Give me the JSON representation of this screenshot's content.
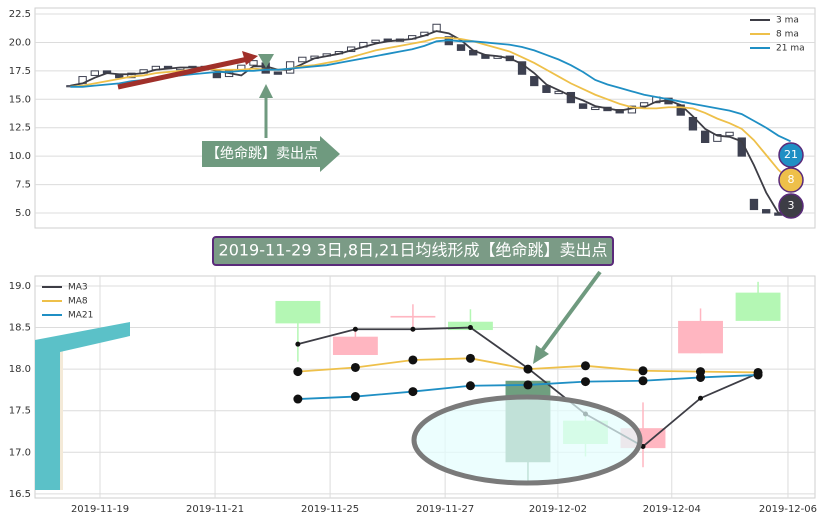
{
  "chart_data": [
    {
      "type": "candlestick",
      "xlim": [
        -2.9,
        61.0
      ],
      "ylim": [
        3.68,
        23.03
      ],
      "yticks": [
        {
          "value": 5,
          "label": "5.0"
        },
        {
          "value": 7.5,
          "label": "7.5"
        },
        {
          "value": 10,
          "label": "10.0"
        },
        {
          "value": 12.5,
          "label": "12.5"
        },
        {
          "value": 15,
          "label": "15.0"
        },
        {
          "value": 17.5,
          "label": "17.5"
        },
        {
          "value": 20,
          "label": "20.0"
        },
        {
          "value": 22.5,
          "label": "22.5"
        }
      ],
      "grid": true,
      "candle_color": "#3d4050",
      "open": [
        16.1,
        16.4,
        17.1,
        17.5,
        17.2,
        16.9,
        17.3,
        17.6,
        17.9,
        17.6,
        17.8,
        17.9,
        17.4,
        17.0,
        17.5,
        18.0,
        18.2,
        17.4,
        17.3,
        18.3,
        18.6,
        18.8,
        19.0,
        19.2,
        19.6,
        20.0,
        20.3,
        20.1,
        20.3,
        20.6,
        21.0,
        20.5,
        19.8,
        19.3,
        18.9,
        18.6,
        18.8,
        18.3,
        17.0,
        16.2,
        15.5,
        15.6,
        14.6,
        14.1,
        14.3,
        14.1,
        13.8,
        14.4,
        14.7,
        15.1,
        14.5,
        13.4,
        12.2,
        11.3,
        11.8,
        11.6,
        6.2,
        5.3,
        5.0,
        4.8
      ],
      "close": [
        16.2,
        17.0,
        17.5,
        17.3,
        16.9,
        17.3,
        17.6,
        17.9,
        17.7,
        17.8,
        17.9,
        17.6,
        16.9,
        17.5,
        18.0,
        18.4,
        17.3,
        17.2,
        18.3,
        18.7,
        18.8,
        19.0,
        19.2,
        19.6,
        20.0,
        20.2,
        20.1,
        20.3,
        20.6,
        20.9,
        21.6,
        19.8,
        19.3,
        18.9,
        18.6,
        18.8,
        18.4,
        17.2,
        16.2,
        15.6,
        15.7,
        14.7,
        14.2,
        14.3,
        14.0,
        13.8,
        14.4,
        14.7,
        15.2,
        14.6,
        13.6,
        12.3,
        11.2,
        11.9,
        12.1,
        10.0,
        5.3,
        5.0,
        4.8,
        5.1
      ],
      "series": [
        {
          "name": "3 ma",
          "color": "#3d3d45",
          "values": [
            16.2,
            16.4,
            16.9,
            17.3,
            17.2,
            17.2,
            17.3,
            17.6,
            17.7,
            17.8,
            17.8,
            17.8,
            17.5,
            17.3,
            17.1,
            17.9,
            17.9,
            17.6,
            17.6,
            18.1,
            18.6,
            18.8,
            19.0,
            19.3,
            19.6,
            19.9,
            20.1,
            20.2,
            20.3,
            20.6,
            21.0,
            20.8,
            20.2,
            19.3,
            18.9,
            18.8,
            18.6,
            18.1,
            17.3,
            16.3,
            15.8,
            15.3,
            14.9,
            14.4,
            14.2,
            14.0,
            14.2,
            14.3,
            14.8,
            14.9,
            14.5,
            13.5,
            12.4,
            11.8,
            11.7,
            11.3,
            9.2,
            6.8,
            5.0,
            5.0
          ]
        },
        {
          "name": "8 ma",
          "color": "#eec04a",
          "values": [
            16.1,
            16.2,
            16.4,
            16.6,
            16.8,
            17.0,
            17.1,
            17.3,
            17.4,
            17.5,
            17.6,
            17.7,
            17.6,
            17.6,
            17.6,
            17.7,
            17.6,
            17.6,
            17.7,
            17.9,
            18.0,
            18.2,
            18.4,
            18.7,
            19.0,
            19.3,
            19.5,
            19.7,
            19.9,
            20.1,
            20.4,
            20.4,
            20.3,
            20.1,
            19.8,
            19.5,
            19.2,
            18.7,
            18.2,
            17.6,
            17.0,
            16.4,
            15.9,
            15.4,
            15.0,
            14.6,
            14.3,
            14.2,
            14.2,
            14.3,
            14.3,
            14.2,
            13.8,
            13.3,
            12.9,
            12.4,
            11.4,
            10.1,
            8.8,
            7.8
          ]
        },
        {
          "name": "21 ma",
          "color": "#1f8fc4",
          "values": [
            16.1,
            16.1,
            16.2,
            16.3,
            16.4,
            16.6,
            16.7,
            16.9,
            17.0,
            17.1,
            17.2,
            17.3,
            17.4,
            17.4,
            17.5,
            17.5,
            17.6,
            17.6,
            17.7,
            17.8,
            17.9,
            18.0,
            18.2,
            18.4,
            18.6,
            18.8,
            19.0,
            19.2,
            19.4,
            19.7,
            20.1,
            20.2,
            20.1,
            20.1,
            20.0,
            19.9,
            19.8,
            19.6,
            19.3,
            18.9,
            18.5,
            18.0,
            17.4,
            16.7,
            16.3,
            16.0,
            15.7,
            15.4,
            15.2,
            15.0,
            14.8,
            14.6,
            14.4,
            14.2,
            14.0,
            13.7,
            13.1,
            12.5,
            11.8,
            11.3
          ]
        }
      ],
      "end_labels": [
        "21",
        "8",
        "3"
      ],
      "annotation": "【绝命跳】卖出点"
    },
    {
      "type": "candlestick",
      "title": "2019-11-29 3日,8日,21日均线形成【绝命跳】卖出点",
      "xlim": [
        -4.57,
        8.99
      ],
      "xticks": [
        {
          "value": -3.44,
          "label": "2019-11-19"
        },
        {
          "value": -1.44,
          "label": "2019-11-21"
        },
        {
          "value": 0.56,
          "label": "2019-11-25"
        },
        {
          "value": 2.56,
          "label": "2019-11-27"
        },
        {
          "value": 4.52,
          "label": "2019-12-02"
        },
        {
          "value": 6.5,
          "label": "2019-12-04"
        },
        {
          "value": 8.52,
          "label": "2019-12-06"
        }
      ],
      "ylim": [
        16.45,
        19.12
      ],
      "yticks": [
        {
          "value": 16.5,
          "label": "16.5"
        },
        {
          "value": 17,
          "label": "17.0"
        },
        {
          "value": 17.5,
          "label": "17.5"
        },
        {
          "value": 18,
          "label": "18.0"
        },
        {
          "value": 18.5,
          "label": "18.5"
        },
        {
          "value": 19,
          "label": "19.0"
        }
      ],
      "grid": true,
      "open": [
        18.82,
        18.17,
        18.62,
        18.57,
        17.86,
        17.38,
        17.05,
        18.19,
        18.92
      ],
      "close": [
        18.55,
        18.39,
        18.64,
        18.47,
        16.88,
        17.1,
        17.29,
        18.58,
        18.58
      ],
      "high": [
        18.82,
        18.47,
        18.78,
        18.72,
        17.86,
        17.45,
        17.6,
        18.73,
        19.05
      ],
      "low": [
        18.09,
        18.17,
        18.45,
        18.47,
        16.66,
        16.95,
        16.82,
        18.19,
        18.58
      ],
      "colors": [
        "#b4f7b4",
        "#ffb6c1",
        "#ffb6c1",
        "#b4f7b4",
        "#6f9f7f",
        "#b4f7b4",
        "#ffb6c1",
        "#ffb6c1",
        "#b4f7b4"
      ],
      "series": [
        {
          "name": "MA3",
          "color": "#3d3d45",
          "marker": 2.5,
          "values": [
            18.3,
            18.48,
            18.48,
            18.5,
            18.01,
            17.46,
            17.07,
            17.65,
            17.95
          ]
        },
        {
          "name": "MA8",
          "color": "#eec04a",
          "marker": 4.5,
          "values": [
            17.97,
            18.02,
            18.11,
            18.13,
            18.0,
            18.04,
            17.98,
            17.97,
            17.96
          ]
        },
        {
          "name": "MA21",
          "color": "#1f8fc4",
          "marker": 4.5,
          "values": [
            17.64,
            17.67,
            17.73,
            17.8,
            17.81,
            17.85,
            17.86,
            17.9,
            17.93
          ]
        }
      ]
    }
  ]
}
